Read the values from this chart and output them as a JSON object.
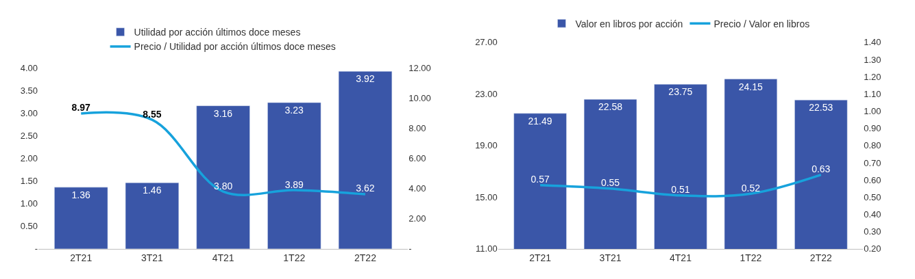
{
  "chart_data": [
    {
      "type": "bar",
      "categories": [
        "2T21",
        "3T21",
        "4T21",
        "1T22",
        "2T22"
      ],
      "legend": "top",
      "series": [
        {
          "name": "Utilidad por acción últimos doce meses",
          "color": "#3a56a8",
          "values": [
            1.36,
            1.46,
            3.16,
            3.23,
            3.92
          ],
          "value_labels": [
            "1.36",
            "1.46",
            "3.16",
            "3.23",
            "3.92"
          ]
        },
        {
          "name": "Precio / Utilidad por acción últimos doce meses",
          "type": "line",
          "axis": "y2",
          "color": "#17a2dc",
          "values": [
            8.97,
            8.55,
            3.8,
            3.89,
            3.62
          ],
          "value_labels": [
            "8.97",
            "8.55",
            "3.80",
            "3.89",
            "3.62"
          ]
        }
      ],
      "ylim": [
        0,
        4
      ],
      "yticks": [
        {
          "value": 0,
          "label": "-"
        },
        {
          "value": 0.5,
          "label": "0.50"
        },
        {
          "value": 1,
          "label": "1.00"
        },
        {
          "value": 1.5,
          "label": "1.50"
        },
        {
          "value": 2,
          "label": "2.00"
        },
        {
          "value": 2.5,
          "label": "2.50"
        },
        {
          "value": 3,
          "label": "3.00"
        },
        {
          "value": 3.5,
          "label": "3.50"
        },
        {
          "value": 4,
          "label": "4.00"
        }
      ],
      "y2lim": [
        0,
        12
      ],
      "y2ticks": [
        {
          "value": 0,
          "label": "-"
        },
        {
          "value": 2,
          "label": "2.00"
        },
        {
          "value": 4,
          "label": "4.00"
        },
        {
          "value": 6,
          "label": "6.00"
        },
        {
          "value": 8,
          "label": "8.00"
        },
        {
          "value": 10,
          "label": "10.00"
        },
        {
          "value": 12,
          "label": "12.00"
        }
      ]
    },
    {
      "type": "bar",
      "categories": [
        "2T21",
        "3T21",
        "4T21",
        "1T22",
        "2T22"
      ],
      "legend": "top",
      "series": [
        {
          "name": "Valor en libros por acción",
          "color": "#3a56a8",
          "values": [
            21.49,
            22.58,
            23.75,
            24.15,
            22.53
          ],
          "value_labels": [
            "21.49",
            "22.58",
            "23.75",
            "24.15",
            "22.53"
          ]
        },
        {
          "name": "Precio / Valor en libros",
          "type": "line",
          "axis": "y2",
          "color": "#17a2dc",
          "values": [
            0.57,
            0.55,
            0.51,
            0.52,
            0.63
          ],
          "value_labels": [
            "0.57",
            "0.55",
            "0.51",
            "0.52",
            "0.63"
          ]
        }
      ],
      "ylim": [
        11,
        27
      ],
      "yticks": [
        {
          "value": 11,
          "label": "11.00"
        },
        {
          "value": 15,
          "label": "15.00"
        },
        {
          "value": 19,
          "label": "19.00"
        },
        {
          "value": 23,
          "label": "23.00"
        },
        {
          "value": 27,
          "label": "27.00"
        }
      ],
      "y2lim": [
        0.2,
        1.4
      ],
      "y2ticks": [
        {
          "value": 0.2,
          "label": "0.20"
        },
        {
          "value": 0.3,
          "label": "0.30"
        },
        {
          "value": 0.4,
          "label": "0.40"
        },
        {
          "value": 0.5,
          "label": "0.50"
        },
        {
          "value": 0.6,
          "label": "0.60"
        },
        {
          "value": 0.7,
          "label": "0.70"
        },
        {
          "value": 0.8,
          "label": "0.80"
        },
        {
          "value": 0.9,
          "label": "0.90"
        },
        {
          "value": 1.0,
          "label": "1.00"
        },
        {
          "value": 1.1,
          "label": "1.10"
        },
        {
          "value": 1.2,
          "label": "1.20"
        },
        {
          "value": 1.3,
          "label": "1.30"
        },
        {
          "value": 1.4,
          "label": "1.40"
        }
      ]
    }
  ]
}
